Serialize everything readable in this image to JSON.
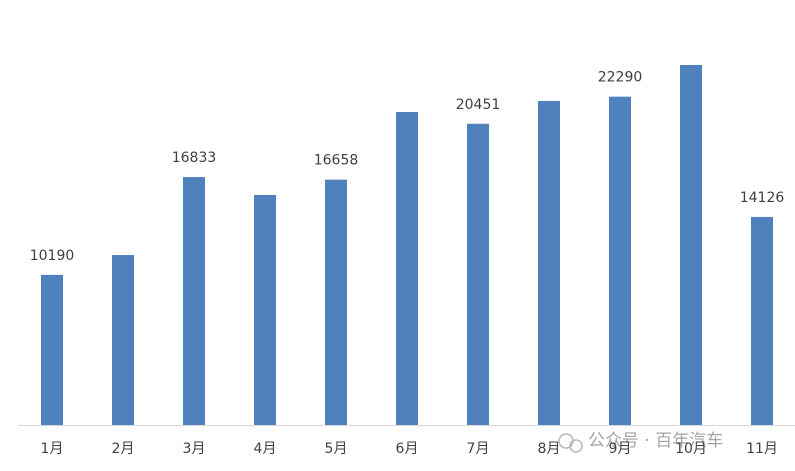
{
  "chart_data": {
    "type": "bar",
    "categories": [
      "1月",
      "2月",
      "3月",
      "4月",
      "5月",
      "6月",
      "7月",
      "8月",
      "9月",
      "10月",
      "11月"
    ],
    "values": [
      10190,
      11540,
      16833,
      15615,
      16658,
      21250,
      20451,
      22000,
      22290,
      24440,
      14126
    ],
    "value_labels": [
      "10190",
      null,
      "16833",
      null,
      "16658",
      null,
      "20451",
      null,
      "22290",
      null,
      "14126"
    ],
    "color": "#4f81bd",
    "watermark": "公众号 · 百年汽车"
  }
}
